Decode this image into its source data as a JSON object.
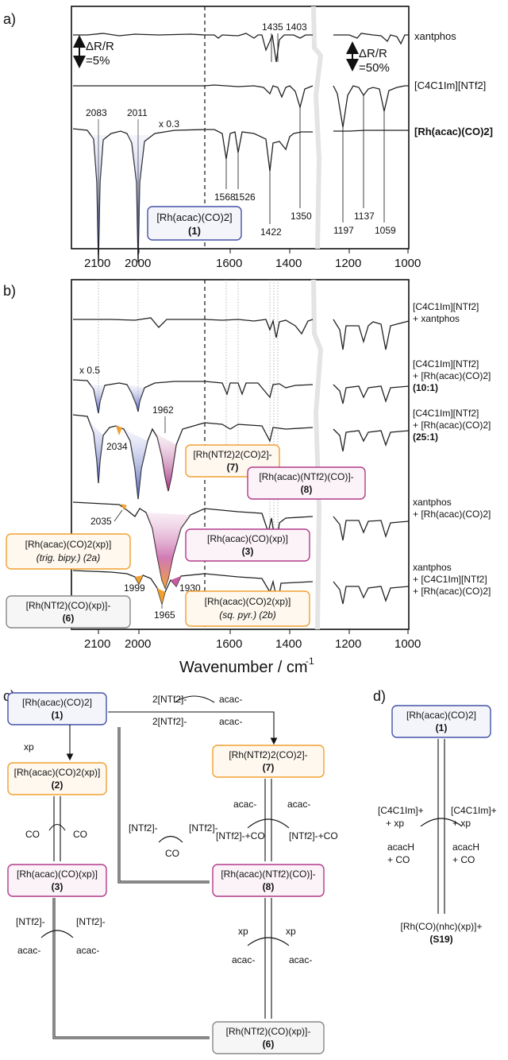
{
  "panels": {
    "a": "a)",
    "b": "b)",
    "c": "c)",
    "d": "d)"
  },
  "axis": {
    "xlabel": "Wavenumber / cm",
    "xlabel_sup": "-1",
    "ticks": [
      "2100",
      "2000",
      "1600",
      "1400",
      "1200",
      "1000"
    ]
  },
  "scalebars": {
    "left": "ΔR/R",
    "left_val": "=5%",
    "right": "ΔR/R",
    "right_val": "=50%"
  },
  "panel_a": {
    "traces": [
      "xantphos",
      "[C4C1Im][NTf2]",
      "[Rh(acac)(CO)2]"
    ],
    "factor": "x 0.3",
    "peaks_top": [
      "1435",
      "1403"
    ],
    "peaks_upper": [
      "2083",
      "2011"
    ],
    "peaks_lower": [
      "1568",
      "1526",
      "1422",
      "1350",
      "1197",
      "1137",
      "1059"
    ],
    "box": "[Rh(acac)(CO)2]",
    "box_id": "(1)"
  },
  "panel_b": {
    "traces": [
      {
        "l1": "[C4C1Im][NTf2]",
        "l2": "+ xantphos",
        "l3": ""
      },
      {
        "l1": "[C4C1Im][NTf2]",
        "l2": "+ [Rh(acac)(CO)2]",
        "l3": "(10:1)"
      },
      {
        "l1": "[C4C1Im][NTf2]",
        "l2": "+ [Rh(acac)(CO)2]",
        "l3": "(25:1)"
      },
      {
        "l1": "xantphos",
        "l2": "+ [Rh(acac)(CO)2]",
        "l3": ""
      },
      {
        "l1": "xantphos",
        "l2": "+ [C4C1Im][NTf2]",
        "l3": "+ [Rh(acac)(CO)2]"
      }
    ],
    "factor": "x 0.5",
    "peaks": [
      "1962",
      "2034",
      "2035",
      "1999",
      "1965",
      "1930"
    ],
    "boxes": {
      "b7": [
        "[Rh(NTf2)2(CO)2]-",
        "(7)"
      ],
      "b8": [
        "[Rh(acac)(NTf2)(CO)]-",
        "(8)"
      ],
      "b2a": [
        "[Rh(acac)(CO)2(xp)]",
        "(trig. bipy.) (2a)"
      ],
      "b3": [
        "[Rh(acac)(CO)(xp)]",
        "(3)"
      ],
      "b6": [
        "[Rh(NTf2)(CO)(xp)]-",
        "(6)"
      ],
      "b2b": [
        "[Rh(acac)(CO)2(xp)]",
        "(sq. pyr.) (2b)"
      ]
    }
  },
  "scheme_c": {
    "box1": [
      "[Rh(acac)(CO)2]",
      "(1)"
    ],
    "box2": [
      "[Rh(acac)(CO)2(xp)]",
      "(2)"
    ],
    "box3": [
      "[Rh(acac)(CO)(xp)]",
      "(3)"
    ],
    "box7": [
      "[Rh(NTf2)2(CO)2]-",
      "(7)"
    ],
    "box8": [
      "[Rh(acac)(NTf2)(CO)]-",
      "(8)"
    ],
    "box6": [
      "[Rh(NTf2)(CO)(xp)]-",
      "(6)"
    ],
    "labels": {
      "xp": "xp",
      "co": "CO",
      "acac": "acac-",
      "ntf2": "[NTf2]-",
      "two_ntf2": "2[NTf2]-",
      "ntf2_co": "[NTf2]-+CO"
    }
  },
  "scheme_d": {
    "box1": [
      "[Rh(acac)(CO)2]",
      "(1)"
    ],
    "cation": "[C4C1Im]+",
    "plus_xp": "+ xp",
    "acach": "acacH",
    "plus_co": "+ CO",
    "product": "[Rh(CO)(nhc)(xp)]+",
    "product_id": "(S19)"
  },
  "colors": {
    "blue": "#3d4ea8",
    "orange": "#f0a030",
    "magenta": "#b23a8a",
    "grey": "#888888",
    "red": "#e0401e"
  }
}
